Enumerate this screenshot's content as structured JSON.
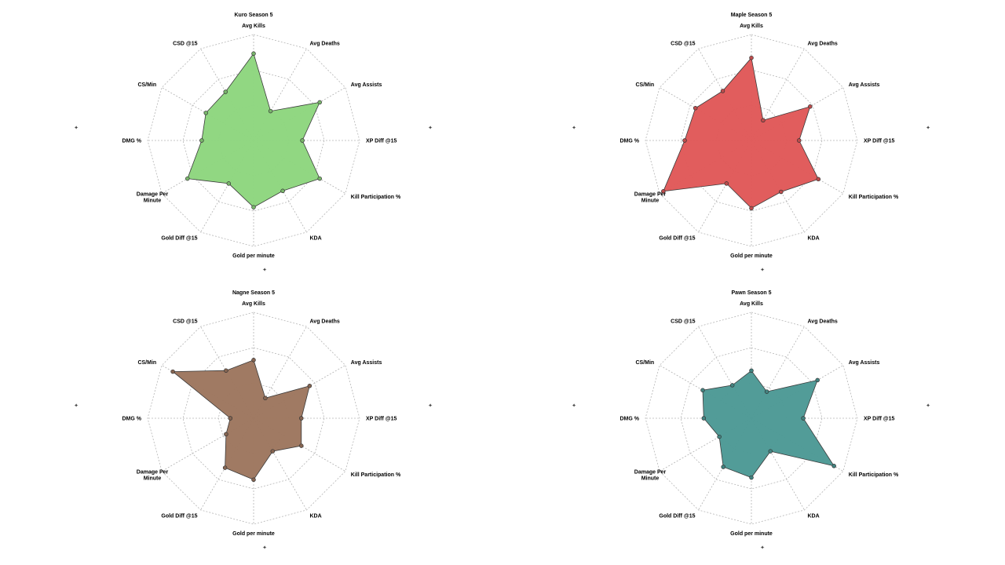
{
  "chart_data": [
    {
      "type": "radar",
      "title": "Kuro Season 5",
      "color": "#8fd67f",
      "axes": [
        "Avg Kills",
        "Avg Deaths",
        "Avg Assists",
        "XP Diff @15",
        "Kill Participation %",
        "KDA",
        "Gold per minute",
        "Gold Diff @15",
        "Damage Per\nMinute",
        "DMG %",
        "CS/Min",
        "CSD @15"
      ],
      "values": [
        0.82,
        0.32,
        0.72,
        0.46,
        0.72,
        0.55,
        0.63,
        0.47,
        0.72,
        0.49,
        0.52,
        0.53
      ],
      "grid_levels": 3,
      "rmax": 1.0
    },
    {
      "type": "radar",
      "title": "Maple Season 5",
      "color": "#e05a5a",
      "axes": [
        "Avg Kills",
        "Avg Deaths",
        "Avg Assists",
        "XP Diff @15",
        "Kill Participation %",
        "KDA",
        "Gold per minute",
        "Gold Diff @15",
        "Damage Per\nMinute",
        "DMG %",
        "CS/Min",
        "CSD @15"
      ],
      "values": [
        0.78,
        0.22,
        0.64,
        0.45,
        0.73,
        0.56,
        0.64,
        0.47,
        0.96,
        0.63,
        0.61,
        0.54
      ],
      "grid_levels": 3,
      "rmax": 1.0
    },
    {
      "type": "radar",
      "title": "Nagne Season 5",
      "color": "#9e7760",
      "axes": [
        "Avg Kills",
        "Avg Deaths",
        "Avg Assists",
        "XP Diff @15",
        "Kill Participation %",
        "KDA",
        "Gold per minute",
        "Gold Diff @15",
        "Damage Per\nMinute",
        "DMG %",
        "CS/Min",
        "CSD @15"
      ],
      "values": [
        0.55,
        0.22,
        0.61,
        0.45,
        0.52,
        0.36,
        0.58,
        0.54,
        0.3,
        0.22,
        0.88,
        0.52
      ],
      "grid_levels": 3,
      "rmax": 1.0
    },
    {
      "type": "radar",
      "title": "Pawn Season 5",
      "color": "#4f9a96",
      "axes": [
        "Avg Kills",
        "Avg Deaths",
        "Avg Assists",
        "XP Diff @15",
        "Kill Participation %",
        "KDA",
        "Gold per minute",
        "Gold Diff @15",
        "Damage Per\nMinute",
        "DMG %",
        "CS/Min",
        "CSD @15"
      ],
      "values": [
        0.45,
        0.29,
        0.72,
        0.49,
        0.9,
        0.36,
        0.56,
        0.53,
        0.35,
        0.45,
        0.53,
        0.36
      ],
      "grid_levels": 3,
      "rmax": 1.0
    }
  ]
}
